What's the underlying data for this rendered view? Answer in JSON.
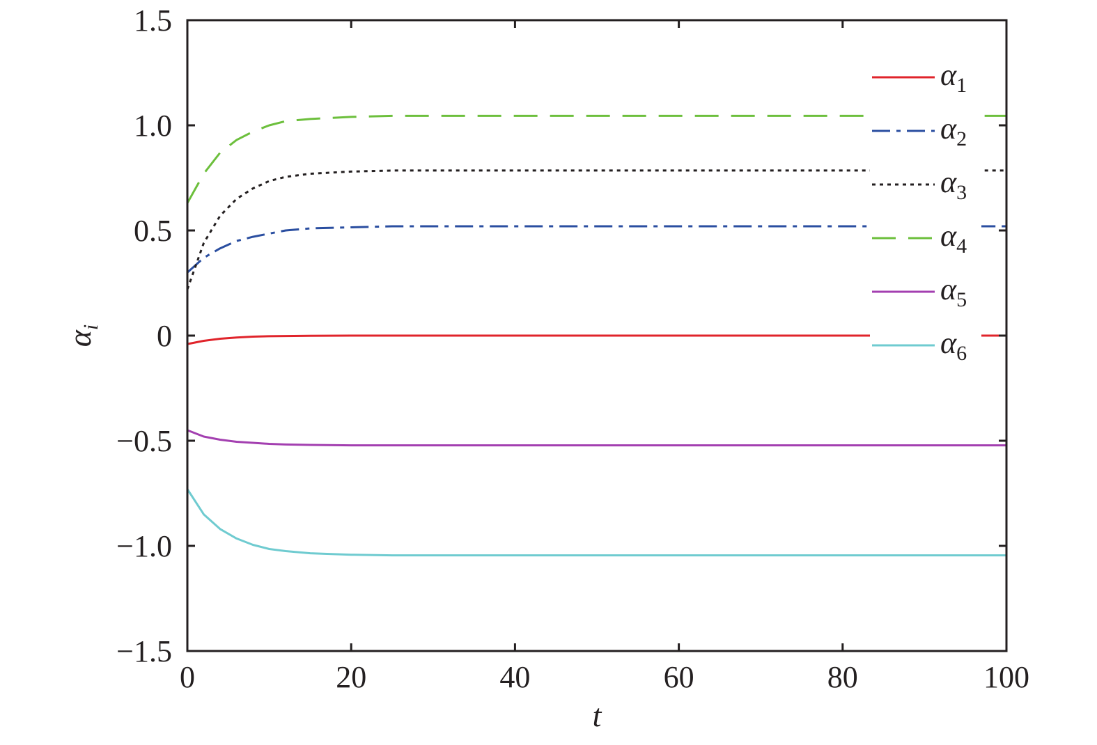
{
  "chart_data": {
    "type": "line",
    "xlabel": "t",
    "ylabel_symbol": "α",
    "ylabel_subscript": "i",
    "xlim": [
      0,
      100
    ],
    "ylim": [
      -1.5,
      1.5
    ],
    "xticks": [
      0,
      20,
      40,
      60,
      80,
      100
    ],
    "xtick_labels": [
      "0",
      "20",
      "40",
      "60",
      "80",
      "100"
    ],
    "yticks": [
      1.5,
      1.0,
      0.5,
      0,
      -0.5,
      -1.0,
      -1.5
    ],
    "ytick_labels": [
      "1.5",
      "1.0",
      "0.5",
      "0",
      "−0.5",
      "−1.0",
      "−1.5"
    ],
    "grid": false,
    "legend_position": "top-right",
    "x": [
      0,
      2,
      4,
      6,
      8,
      10,
      12,
      15,
      20,
      25,
      30,
      40,
      50,
      60,
      70,
      80,
      90,
      100
    ],
    "series": [
      {
        "name": "α1",
        "symbol": "α",
        "subscript": "1",
        "color": "#e0242b",
        "dash": "solid",
        "values": [
          -0.04,
          -0.025,
          -0.015,
          -0.009,
          -0.005,
          -0.003,
          -0.002,
          -0.001,
          0,
          0,
          0,
          0,
          0,
          0,
          0,
          0,
          0,
          0
        ]
      },
      {
        "name": "α2",
        "symbol": "α",
        "subscript": "2",
        "color": "#2a4ea0",
        "dash": "dashdot",
        "values": [
          0.3,
          0.37,
          0.415,
          0.45,
          0.47,
          0.485,
          0.5,
          0.51,
          0.515,
          0.52,
          0.52,
          0.52,
          0.52,
          0.52,
          0.52,
          0.52,
          0.52,
          0.52
        ]
      },
      {
        "name": "α3",
        "symbol": "α",
        "subscript": "3",
        "color": "#231f20",
        "dash": "dotted",
        "values": [
          0.22,
          0.44,
          0.57,
          0.65,
          0.7,
          0.735,
          0.755,
          0.77,
          0.78,
          0.785,
          0.785,
          0.785,
          0.785,
          0.785,
          0.785,
          0.785,
          0.785,
          0.785
        ]
      },
      {
        "name": "α4",
        "symbol": "α",
        "subscript": "4",
        "color": "#6cbf3c",
        "dash": "longdash",
        "values": [
          0.63,
          0.77,
          0.87,
          0.93,
          0.97,
          1.0,
          1.02,
          1.03,
          1.04,
          1.045,
          1.045,
          1.045,
          1.045,
          1.045,
          1.045,
          1.045,
          1.045,
          1.045
        ]
      },
      {
        "name": "α5",
        "symbol": "α",
        "subscript": "5",
        "color": "#a33fb0",
        "dash": "solid",
        "values": [
          -0.45,
          -0.48,
          -0.495,
          -0.505,
          -0.51,
          -0.515,
          -0.518,
          -0.52,
          -0.522,
          -0.522,
          -0.522,
          -0.522,
          -0.522,
          -0.522,
          -0.522,
          -0.522,
          -0.522,
          -0.522
        ]
      },
      {
        "name": "α6",
        "symbol": "α",
        "subscript": "6",
        "color": "#6fcbd0",
        "dash": "solid",
        "values": [
          -0.73,
          -0.85,
          -0.92,
          -0.965,
          -0.995,
          -1.015,
          -1.025,
          -1.035,
          -1.042,
          -1.045,
          -1.045,
          -1.045,
          -1.045,
          -1.045,
          -1.045,
          -1.045,
          -1.045,
          -1.045
        ]
      }
    ]
  }
}
